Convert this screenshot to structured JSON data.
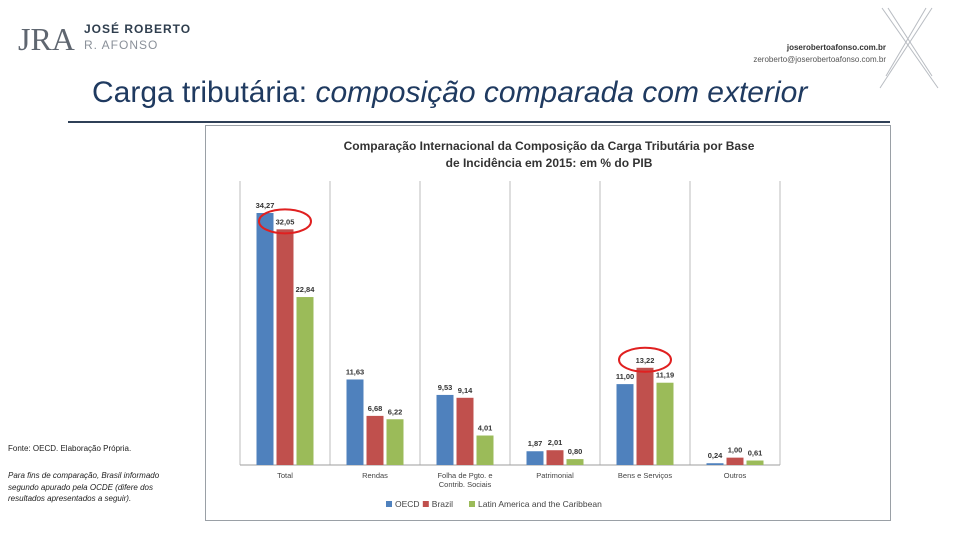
{
  "header": {
    "brand_initials": "JRA",
    "brand_name": "JOSÉ ROBERTO",
    "brand_sub": "R. AFONSO",
    "site": "joserobertoafonso.com.br",
    "email": "zeroberto@joserobertoafonso.com.br"
  },
  "slide": {
    "title_main": "Carga tributária: ",
    "title_emph": "composição comparada com exterior"
  },
  "notes": {
    "source": "Fonte: OECD. Elaboração Própria.",
    "comparison": "Para fins de comparação, Brasil informado segundo apurado pela OCDE (difere dos resultados apresentados a seguir)."
  },
  "colors": {
    "title": "#1f3a60",
    "oecd": "#4f81bd",
    "brazil": "#c0504d",
    "latam": "#9bbb59",
    "highlight_circle": "#e02020"
  },
  "chart_data": {
    "type": "bar",
    "title_line1": "Comparação Internacional da Composição da Carga Tributária por Base",
    "title_line2": "de Incidência em 2015: em % do PIB",
    "categories": [
      "Total",
      "Rendas",
      "Folha de Pgto. e|Contrib. Sociais",
      "Patrimonial",
      "Bens e Serviços",
      "Outros"
    ],
    "series": [
      {
        "name": "OECD",
        "values": [
          34.27,
          11.63,
          9.53,
          1.87,
          11.0,
          0.24
        ],
        "labels": [
          "34,27",
          "11,63",
          "9,53",
          "1,87",
          "11,00",
          "0,24"
        ]
      },
      {
        "name": "Brazil",
        "values": [
          32.05,
          6.68,
          9.14,
          2.01,
          13.22,
          1.0
        ],
        "labels": [
          "32,05",
          "6,68",
          "9,14",
          "2,01",
          "13,22",
          "1,00"
        ]
      },
      {
        "name": "Latin America and the Caribbean",
        "values": [
          22.84,
          6.22,
          4.01,
          0.8,
          11.19,
          0.61
        ],
        "labels": [
          "22,84",
          "6,22",
          "4,01",
          "0,80",
          "11,19",
          "0,61"
        ]
      }
    ],
    "ylim": [
      0,
      40
    ],
    "grid": false,
    "legend": "bottom",
    "highlighted": [
      {
        "series": "Brazil",
        "category": "Total"
      },
      {
        "series": "Brazil",
        "category": "Bens e Serviços"
      }
    ]
  }
}
